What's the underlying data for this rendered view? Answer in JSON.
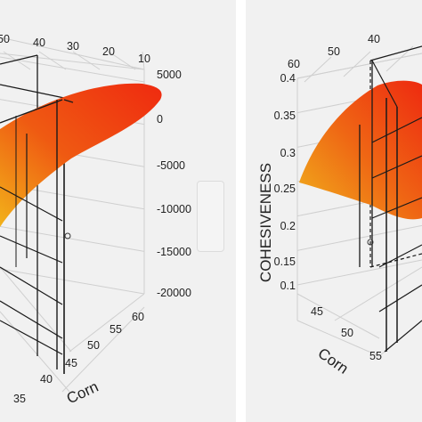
{
  "chart_data": [
    {
      "type": "surface",
      "x_label": "Corn",
      "x_ticks": [
        "45",
        "50",
        "55",
        "60"
      ],
      "y_ticks": [
        "35",
        "40"
      ],
      "top_ticks": [
        "50",
        "40",
        "30",
        "20",
        "10"
      ],
      "z_ticks": [
        "5000",
        "0",
        "-5000",
        "-10000",
        "-15000",
        "-20000"
      ],
      "zlim": [
        -20000,
        5000
      ],
      "colormap": [
        "#f2b21a",
        "#ef3a10"
      ]
    },
    {
      "type": "surface",
      "x_label": "Corn",
      "z_label": "COHESIVENESS",
      "x_ticks": [
        "45",
        "50",
        "55"
      ],
      "top_ticks": [
        "60",
        "50",
        "40"
      ],
      "z_ticks": [
        "0.4",
        "0.35",
        "0.3",
        "0.25",
        "0.2",
        "0.15",
        "0.1"
      ],
      "zlim": [
        0.1,
        0.4
      ],
      "colormap": [
        "#f0b21c",
        "#ef2a10"
      ]
    }
  ]
}
